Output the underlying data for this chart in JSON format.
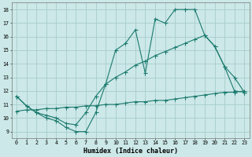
{
  "xlabel": "Humidex (Indice chaleur)",
  "background_color": "#cce8e8",
  "grid_color": "#a8cccc",
  "line_color": "#1a7a6e",
  "line1_x": [
    0,
    1,
    2,
    3,
    4,
    5,
    6,
    7,
    8,
    9,
    10,
    11,
    12,
    13,
    14,
    15,
    16,
    17,
    18,
    19,
    20,
    21,
    22,
    23
  ],
  "line1_y": [
    11.6,
    10.9,
    10.4,
    10.0,
    9.8,
    9.3,
    9.0,
    9.0,
    10.4,
    12.5,
    15.0,
    15.5,
    16.5,
    13.3,
    17.3,
    17.0,
    18.0,
    18.0,
    18.0,
    16.1,
    15.3,
    13.8,
    13.0,
    11.9
  ],
  "line2_x": [
    0,
    1,
    2,
    3,
    4,
    5,
    6,
    7,
    8,
    9,
    10,
    11,
    12,
    13,
    14,
    15,
    16,
    17,
    18,
    19,
    20,
    21,
    22,
    23
  ],
  "line2_y": [
    11.6,
    10.9,
    10.4,
    10.2,
    10.0,
    9.6,
    9.5,
    10.4,
    11.6,
    12.5,
    13.0,
    13.4,
    13.9,
    14.2,
    14.6,
    14.9,
    15.2,
    15.5,
    15.8,
    16.1,
    15.3,
    13.8,
    12.0,
    11.9
  ],
  "line3_x": [
    0,
    1,
    2,
    3,
    4,
    5,
    6,
    7,
    8,
    9,
    10,
    11,
    12,
    13,
    14,
    15,
    16,
    17,
    18,
    19,
    20,
    21,
    22,
    23
  ],
  "line3_y": [
    10.5,
    10.6,
    10.6,
    10.7,
    10.7,
    10.8,
    10.8,
    10.9,
    10.9,
    11.0,
    11.0,
    11.1,
    11.2,
    11.2,
    11.3,
    11.3,
    11.4,
    11.5,
    11.6,
    11.7,
    11.8,
    11.9,
    11.9,
    12.0
  ],
  "xlim": [
    -0.5,
    23.5
  ],
  "ylim": [
    8.5,
    18.5
  ],
  "xticks": [
    0,
    1,
    2,
    3,
    4,
    5,
    6,
    7,
    8,
    9,
    10,
    11,
    12,
    13,
    14,
    15,
    16,
    17,
    18,
    19,
    20,
    21,
    22,
    23
  ],
  "yticks": [
    9,
    10,
    11,
    12,
    13,
    14,
    15,
    16,
    17,
    18
  ],
  "marker_size": 2.0,
  "line_width": 0.8,
  "xlabel_fontsize": 6.0,
  "tick_fontsize": 4.8
}
